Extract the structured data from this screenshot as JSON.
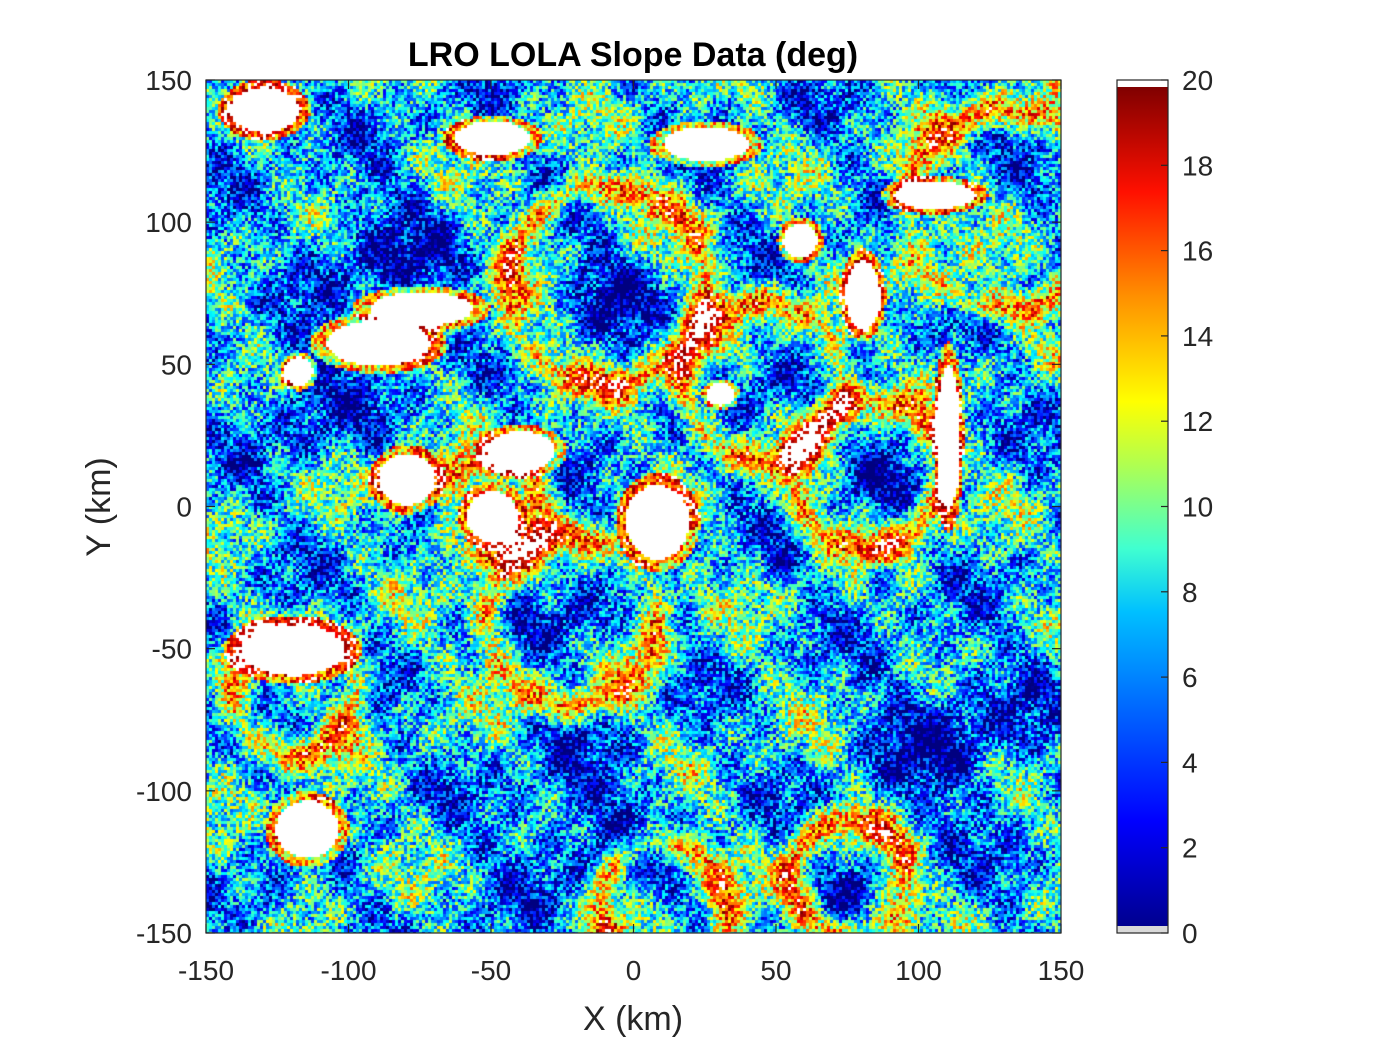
{
  "chart_data": {
    "type": "heatmap",
    "title": "LRO LOLA Slope Data (deg)",
    "xlabel": "X (km)",
    "ylabel": "Y (km)",
    "xlim": [
      -150,
      150
    ],
    "ylim": [
      -150,
      150
    ],
    "xticks": [
      -150,
      -100,
      -50,
      0,
      50,
      100,
      150
    ],
    "yticks": [
      -150,
      -100,
      -50,
      0,
      50,
      100,
      150
    ],
    "colorbar": {
      "ticks": [
        0,
        2,
        4,
        6,
        8,
        10,
        12,
        14,
        16,
        18,
        20
      ],
      "range": [
        0,
        20
      ],
      "colormap": "jet",
      "colors": [
        "#00008f",
        "#0000ff",
        "#0080ff",
        "#00ffff",
        "#80ff80",
        "#ffff00",
        "#ff8000",
        "#ff0000",
        "#800000"
      ],
      "under_color": "#d9d9d9",
      "over_color": "#ffffff"
    },
    "features": {
      "low_slope_basins": [
        {
          "x": 45,
          "y": 45,
          "r": 18
        },
        {
          "x": 82,
          "y": 12,
          "r": 18
        },
        {
          "x": -22,
          "y": -40,
          "r": 22
        },
        {
          "x": -10,
          "y": 78,
          "r": 25
        },
        {
          "x": 85,
          "y": -25,
          "r": 8
        },
        {
          "x": 50,
          "y": -20,
          "r": 8
        },
        {
          "x": -20,
          "y": -110,
          "r": 40
        },
        {
          "x": 112,
          "y": -80,
          "r": 45
        },
        {
          "x": -115,
          "y": 40,
          "r": 30
        },
        {
          "x": -90,
          "y": 90,
          "r": 35
        },
        {
          "x": 75,
          "y": -130,
          "r": 12
        },
        {
          "x": -130,
          "y": -140,
          "r": 15
        }
      ],
      "steep_rims": [
        {
          "x": 45,
          "y": 45,
          "r": 28
        },
        {
          "x": 82,
          "y": 12,
          "r": 26
        },
        {
          "x": -22,
          "y": -40,
          "r": 30
        },
        {
          "x": -10,
          "y": 78,
          "r": 35
        },
        {
          "x": -50,
          "y": 0,
          "r": 17
        },
        {
          "x": -120,
          "y": -65,
          "r": 22
        },
        {
          "x": 10,
          "y": -140,
          "r": 22
        },
        {
          "x": 130,
          "y": 105,
          "r": 35
        },
        {
          "x": 75,
          "y": -130,
          "r": 20
        }
      ],
      "saturated_regions": [
        {
          "x": 8,
          "y": -5,
          "rx": 11,
          "ry": 13
        },
        {
          "x": -50,
          "y": -3,
          "rx": 9,
          "ry": 9
        },
        {
          "x": -115,
          "y": -113,
          "rx": 11,
          "ry": 10
        },
        {
          "x": 80,
          "y": 75,
          "rx": 6,
          "ry": 12
        },
        {
          "x": 58,
          "y": 94,
          "rx": 6,
          "ry": 6
        },
        {
          "x": -90,
          "y": 58,
          "rx": 18,
          "ry": 8
        },
        {
          "x": -75,
          "y": 70,
          "rx": 18,
          "ry": 6
        },
        {
          "x": -50,
          "y": 130,
          "rx": 13,
          "ry": 6
        },
        {
          "x": 25,
          "y": 128,
          "rx": 15,
          "ry": 6
        },
        {
          "x": -120,
          "y": -50,
          "rx": 18,
          "ry": 9
        },
        {
          "x": -80,
          "y": 10,
          "rx": 10,
          "ry": 9
        },
        {
          "x": -40,
          "y": 20,
          "rx": 12,
          "ry": 7
        },
        {
          "x": 110,
          "y": 25,
          "rx": 4,
          "ry": 25
        },
        {
          "x": -130,
          "y": 140,
          "rx": 12,
          "ry": 8
        },
        {
          "x": 105,
          "y": 110,
          "rx": 14,
          "ry": 5
        },
        {
          "x": -118,
          "y": 48,
          "rx": 5,
          "ry": 5
        },
        {
          "x": 30,
          "y": 40,
          "rx": 5,
          "ry": 4
        }
      ]
    }
  }
}
